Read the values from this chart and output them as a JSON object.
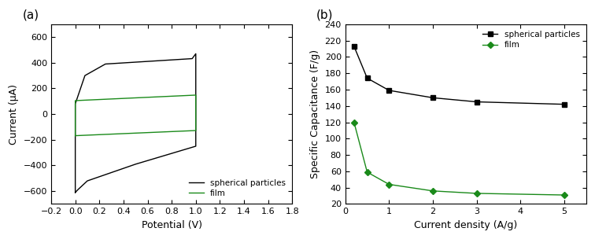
{
  "panel_a": {
    "title": "(a)",
    "xlabel": "Potential (V)",
    "ylabel": "Current (μA)",
    "xlim": [
      -0.2,
      1.8
    ],
    "ylim": [
      -700,
      700
    ],
    "xticks": [
      -0.2,
      0.0,
      0.2,
      0.4,
      0.6,
      0.8,
      1.0,
      1.2,
      1.4,
      1.6,
      1.8
    ],
    "yticks": [
      -600,
      -400,
      -200,
      0,
      200,
      400,
      600
    ],
    "spherical_color": "#000000",
    "film_color": "#1a8a1a",
    "legend_labels": [
      "spherical particles",
      "film"
    ]
  },
  "panel_b": {
    "title": "(b)",
    "xlabel": "Current density (A/g)",
    "ylabel": "Specific Capacitance (F/g)",
    "xlim": [
      0,
      5.5
    ],
    "ylim": [
      20,
      240
    ],
    "xticks": [
      0,
      1,
      2,
      3,
      4,
      5
    ],
    "yticks": [
      20,
      40,
      60,
      80,
      100,
      120,
      140,
      160,
      180,
      200,
      220,
      240
    ],
    "spherical_color": "#000000",
    "film_color": "#1a8a1a",
    "spherical_x": [
      0.2,
      0.5,
      1.0,
      2.0,
      3.0,
      5.0
    ],
    "spherical_y": [
      213,
      174,
      159,
      150,
      145,
      142
    ],
    "film_x": [
      0.2,
      0.5,
      1.0,
      2.0,
      3.0,
      5.0
    ],
    "film_y": [
      120,
      59,
      44,
      36,
      33,
      31
    ],
    "legend_labels": [
      "spherical particles",
      "film"
    ]
  }
}
